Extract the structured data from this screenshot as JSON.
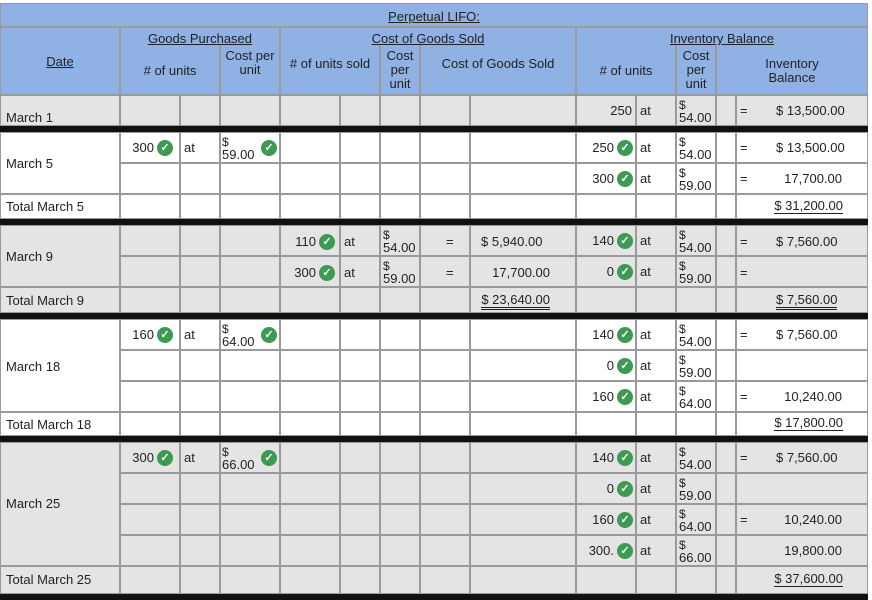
{
  "header": {
    "title": "Perpetual LIFO:",
    "goods_purchased": "Goods Purchased",
    "cogs": "Cost of Goods Sold",
    "inventory_balance": "Inventory Balance",
    "date": "Date",
    "num_units": "# of units",
    "cost_per_unit": "Cost per unit",
    "num_units_sold": "# of units sold",
    "cogs_col": "Cost of Goods Sold",
    "inv_balance_col": "Inventory Balance"
  },
  "labels": {
    "at": "at",
    "equals": "=",
    "dollar": "$"
  },
  "rows": {
    "march1": {
      "date": "March 1",
      "inv_units": "250",
      "inv_cost": "54.00",
      "inv_balance": "$ 13,500.00"
    },
    "march5": {
      "date": "March 5",
      "purch_units": "300",
      "purch_cost": "59.00",
      "inv1_units": "250",
      "inv1_cost": "54.00",
      "inv1_balance": "$ 13,500.00",
      "inv2_units": "300",
      "inv2_cost": "59.00",
      "inv2_balance": "17,700.00",
      "total_label": "Total March 5",
      "total": "$ 31,200.00"
    },
    "march9": {
      "date": "March 9",
      "sold1_units": "110",
      "sold1_cost": "54.00",
      "sold1_cogs": "$   5,940.00",
      "sold2_units": "300",
      "sold2_cost": "59.00",
      "sold2_cogs": "17,700.00",
      "inv1_units": "140",
      "inv1_cost": "54.00",
      "inv1_balance": "$   7,560.00",
      "inv2_units": "0",
      "inv2_cost": "59.00",
      "total_label": "Total March 9",
      "total_cogs": "$ 23,640.00",
      "total": "$   7,560.00"
    },
    "march18": {
      "date": "March 18",
      "purch_units": "160",
      "purch_cost": "64.00",
      "inv1_units": "140",
      "inv1_cost": "54.00",
      "inv1_balance": "$   7,560.00",
      "inv2_units": "0",
      "inv2_cost": "59.00",
      "inv3_units": "160",
      "inv3_cost": "64.00",
      "inv3_balance": "10,240.00",
      "total_label": "Total March 18",
      "total": "$ 17,800.00"
    },
    "march25": {
      "date": "March 25",
      "purch_units": "300",
      "purch_cost": "66.00",
      "inv1_units": "140",
      "inv1_cost": "54.00",
      "inv1_balance": "$   7,560.00",
      "inv2_units": "0",
      "inv2_cost": "59.00",
      "inv3_units": "160",
      "inv3_cost": "64.00",
      "inv3_balance": "10,240.00",
      "inv4_units": "300.",
      "inv4_cost": "66.00",
      "inv4_balance": "19,800.00",
      "total_label": "Total March 25",
      "total": "$ 37,600.00"
    }
  },
  "colors": {
    "header": "#8fb1e3",
    "row_grey": "#e4e4e4",
    "check": "#3c9a52"
  },
  "icons": {
    "check": "check-circle-icon"
  }
}
